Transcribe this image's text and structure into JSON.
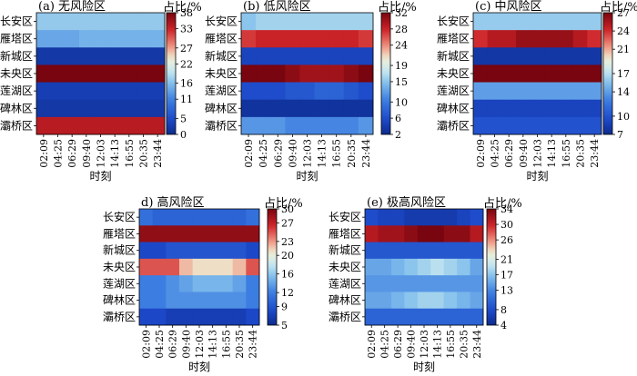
{
  "regions": [
    "长安区",
    "雁塔区",
    "新城区",
    "未央区",
    "莲湖区",
    "碑林区",
    "灞桥区"
  ],
  "times": [
    "02:09",
    "04:25",
    "06:29",
    "09:40",
    "12:03",
    "14:13",
    "16:55",
    "20:35",
    "23:44"
  ],
  "xlabel": "时刻",
  "colorbar_label": "占比/%",
  "chart_data": [
    {
      "type": "heatmap",
      "title": "(a) 无风险区",
      "colorbar_ticks": [
        0,
        5,
        11,
        16,
        22,
        27,
        33,
        38
      ],
      "vmin": 0,
      "vmax": 38,
      "values": [
        [
          17,
          17,
          17,
          17,
          17,
          17,
          17,
          17,
          17
        ],
        [
          14,
          14,
          14,
          15,
          15,
          15,
          15,
          15,
          15
        ],
        [
          2,
          2,
          2,
          2,
          2,
          2,
          2,
          2,
          2
        ],
        [
          38,
          38,
          38,
          38,
          38,
          38,
          38,
          38,
          38
        ],
        [
          3,
          3,
          3,
          3,
          3,
          3,
          3,
          3,
          3
        ],
        [
          2,
          2,
          2,
          2,
          2,
          2,
          2,
          2,
          2
        ],
        [
          34,
          34,
          34,
          34,
          34,
          34,
          34,
          34,
          34
        ]
      ]
    },
    {
      "type": "heatmap",
      "title": "(b) 低风险区",
      "colorbar_ticks": [
        2,
        6,
        10,
        15,
        19,
        24,
        28,
        32
      ],
      "vmin": 2,
      "vmax": 32,
      "values": [
        [
          15,
          16,
          16,
          16,
          16,
          16,
          16,
          16,
          16
        ],
        [
          27,
          28,
          28,
          28,
          28,
          28,
          28,
          28,
          27
        ],
        [
          5,
          5,
          5,
          5,
          5,
          5,
          5,
          5,
          5
        ],
        [
          32,
          32,
          32,
          31,
          30,
          30,
          30,
          31,
          32
        ],
        [
          6,
          6,
          6,
          7,
          7,
          8,
          8,
          7,
          6
        ],
        [
          3,
          3,
          3,
          3,
          3,
          3,
          3,
          3,
          3
        ],
        [
          12,
          12,
          12,
          11,
          11,
          11,
          11,
          11,
          12
        ]
      ]
    },
    {
      "type": "heatmap",
      "title": "(c) 中风险区",
      "colorbar_ticks": [
        7,
        10,
        14,
        17,
        21,
        24,
        27
      ],
      "vmin": 7,
      "vmax": 27,
      "values": [
        [
          16,
          16,
          16,
          16,
          16,
          16,
          16,
          16,
          16
        ],
        [
          24,
          25,
          25,
          26,
          26,
          26,
          26,
          25,
          24
        ],
        [
          8,
          8,
          8,
          8,
          8,
          8,
          8,
          8,
          8
        ],
        [
          27,
          27,
          27,
          27,
          27,
          27,
          27,
          27,
          27
        ],
        [
          14,
          14,
          14,
          14,
          14,
          14,
          14,
          14,
          14
        ],
        [
          9,
          9,
          9,
          9,
          9,
          9,
          9,
          9,
          9
        ],
        [
          10,
          10,
          10,
          10,
          10,
          10,
          10,
          10,
          10
        ]
      ]
    },
    {
      "type": "heatmap",
      "title": "d) 高风险区",
      "colorbar_ticks": [
        5,
        9,
        12,
        16,
        20,
        23,
        27,
        30
      ],
      "vmin": 5,
      "vmax": 30,
      "values": [
        [
          11,
          10,
          10,
          10,
          10,
          10,
          10,
          10,
          11
        ],
        [
          29,
          29,
          29,
          29,
          29,
          29,
          29,
          29,
          29
        ],
        [
          8,
          8,
          9,
          9,
          9,
          9,
          9,
          9,
          8
        ],
        [
          25,
          25,
          25,
          22,
          21,
          21,
          21,
          22,
          25
        ],
        [
          12,
          12,
          13,
          14,
          15,
          15,
          15,
          14,
          12
        ],
        [
          12,
          12,
          13,
          13,
          13,
          13,
          13,
          13,
          12
        ],
        [
          8,
          8,
          7,
          7,
          7,
          7,
          7,
          7,
          8
        ]
      ]
    },
    {
      "type": "heatmap",
      "title": "(e) 极高风险区",
      "colorbar_ticks": [
        4,
        8,
        13,
        17,
        21,
        26,
        30,
        34
      ],
      "vmin": 4,
      "vmax": 34,
      "values": [
        [
          8,
          7,
          7,
          6,
          6,
          6,
          6,
          7,
          8
        ],
        [
          31,
          32,
          32,
          33,
          34,
          34,
          33,
          33,
          31
        ],
        [
          9,
          9,
          9,
          9,
          9,
          9,
          9,
          9,
          9
        ],
        [
          15,
          15,
          16,
          17,
          18,
          19,
          18,
          17,
          15
        ],
        [
          14,
          14,
          14,
          14,
          14,
          14,
          14,
          14,
          14
        ],
        [
          15,
          15,
          16,
          17,
          18,
          18,
          17,
          16,
          15
        ],
        [
          10,
          10,
          10,
          10,
          10,
          10,
          10,
          10,
          10
        ]
      ]
    }
  ]
}
